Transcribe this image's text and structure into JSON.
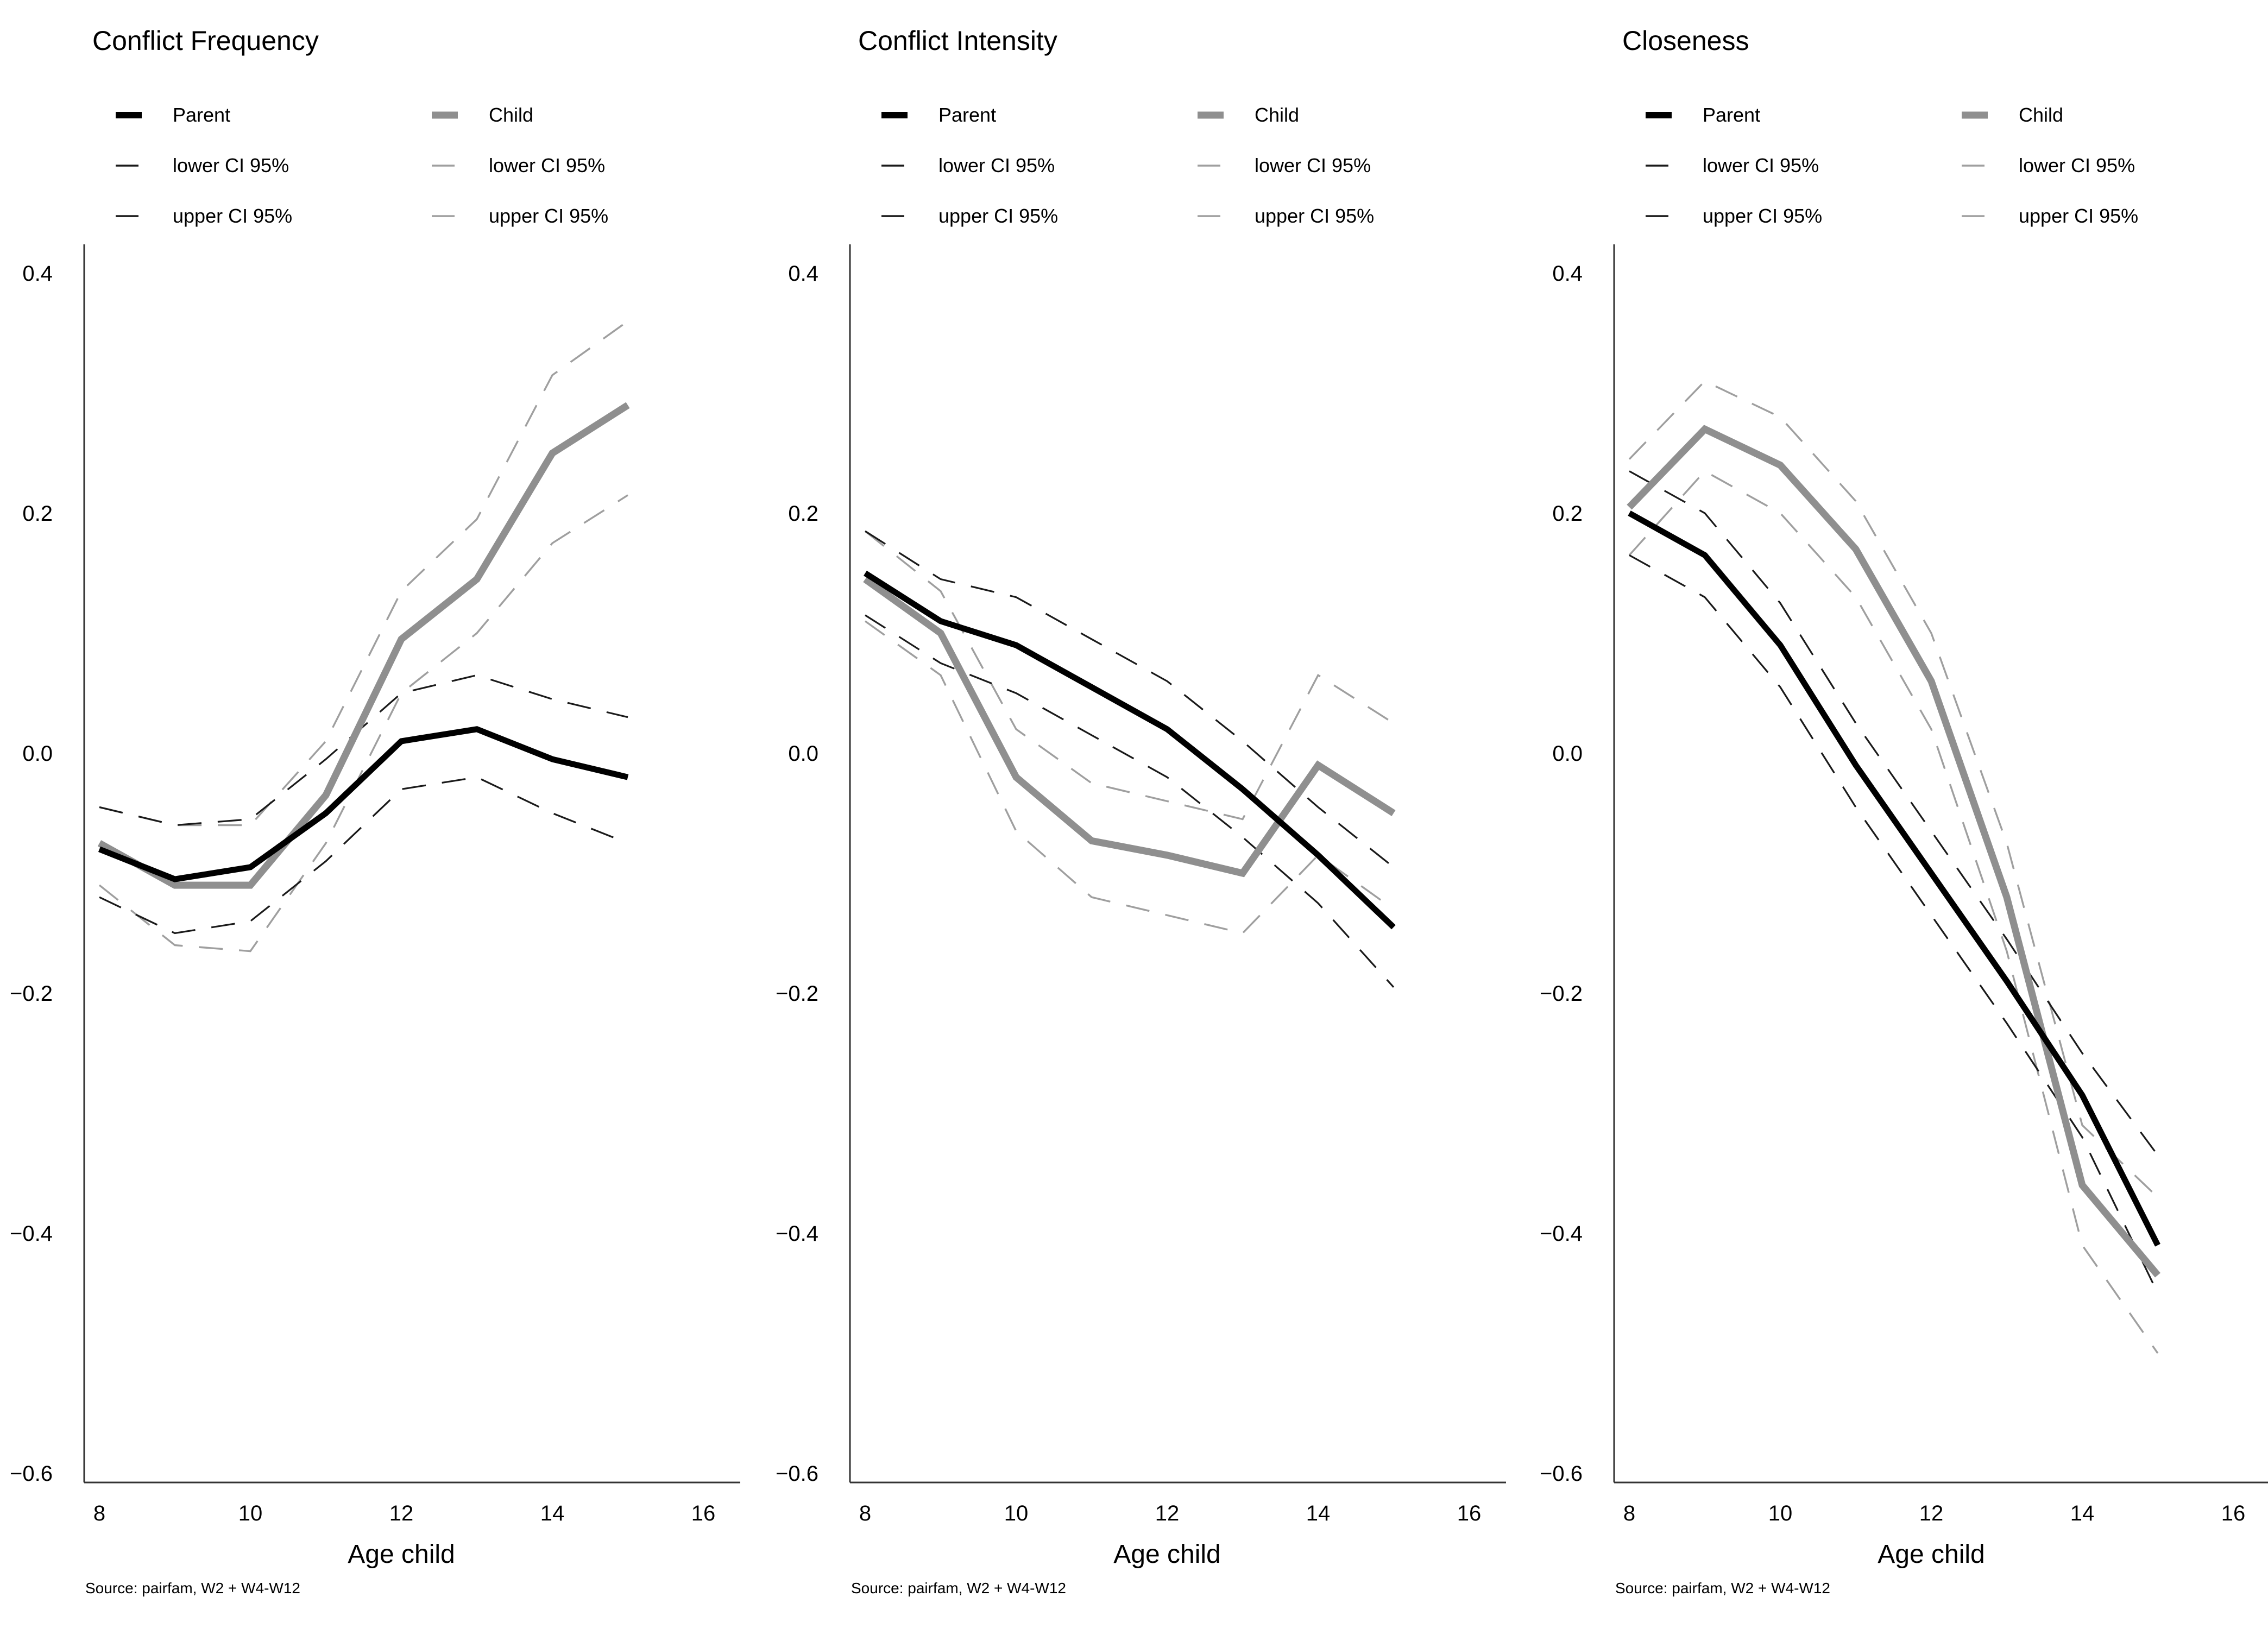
{
  "source": "Source: pairfam, W2 + W4-W12",
  "legend": {
    "parent": "Parent",
    "child": "Child",
    "lower_ci": "lower CI 95%",
    "upper_ci": "upper CI 95%"
  },
  "axis": {
    "xlabel": "Age child",
    "xlim": [
      8,
      16
    ],
    "ylim": [
      -0.6,
      0.4
    ],
    "x_ticks": [
      8,
      10,
      12,
      14,
      16
    ],
    "x_tick_labels": [
      "8",
      "10",
      "12",
      "14",
      "16"
    ],
    "y_ticks": [
      0.4,
      0.2,
      0.0,
      -0.2,
      -0.4,
      -0.6
    ],
    "y_tick_labels": [
      "0.4",
      "0.2",
      "0.0",
      "−0.2",
      "−0.4",
      "−0.6"
    ],
    "grid": false,
    "legend_position": "top-left"
  },
  "colors": {
    "parent": "#000000",
    "child": "#8f8f8f",
    "parent_ci": "#1a1a1a",
    "child_ci": "#9f9f9f",
    "axis": "#333333",
    "background": "#ffffff"
  },
  "chart_data": [
    {
      "type": "line",
      "title": "Conflict Frequency",
      "x": [
        8,
        9,
        10,
        11,
        12,
        13,
        14,
        15
      ],
      "series": [
        {
          "name": "Parent",
          "role": "parent",
          "values": [
            -0.08,
            -0.105,
            -0.095,
            -0.05,
            0.01,
            0.02,
            -0.005,
            -0.02
          ]
        },
        {
          "name": "lower CI 95%",
          "role": "parent_lower",
          "values": [
            -0.12,
            -0.15,
            -0.14,
            -0.09,
            -0.03,
            -0.02,
            -0.05,
            -0.075
          ]
        },
        {
          "name": "upper CI 95%",
          "role": "parent_upper",
          "values": [
            -0.045,
            -0.06,
            -0.055,
            -0.005,
            0.05,
            0.065,
            0.045,
            0.03
          ]
        },
        {
          "name": "Child",
          "role": "child",
          "values": [
            -0.075,
            -0.11,
            -0.11,
            -0.035,
            0.095,
            0.145,
            0.25,
            0.29
          ]
        },
        {
          "name": "lower CI 95%",
          "role": "child_lower",
          "values": [
            -0.11,
            -0.16,
            -0.165,
            -0.075,
            0.05,
            0.1,
            0.175,
            0.215
          ]
        },
        {
          "name": "upper CI 95%",
          "role": "child_upper",
          "values": [
            -0.045,
            -0.06,
            -0.06,
            0.01,
            0.135,
            0.195,
            0.315,
            0.36
          ]
        }
      ]
    },
    {
      "type": "line",
      "title": "Conflict Intensity",
      "x": [
        8,
        9,
        10,
        11,
        12,
        13,
        14,
        15
      ],
      "series": [
        {
          "name": "Parent",
          "role": "parent",
          "values": [
            0.15,
            0.11,
            0.09,
            0.055,
            0.02,
            -0.03,
            -0.085,
            -0.145
          ]
        },
        {
          "name": "lower CI 95%",
          "role": "parent_lower",
          "values": [
            0.115,
            0.075,
            0.05,
            0.015,
            -0.02,
            -0.07,
            -0.125,
            -0.195
          ]
        },
        {
          "name": "upper CI 95%",
          "role": "parent_upper",
          "values": [
            0.185,
            0.145,
            0.13,
            0.095,
            0.06,
            0.01,
            -0.045,
            -0.095
          ]
        },
        {
          "name": "Child",
          "role": "child",
          "values": [
            0.145,
            0.1,
            -0.02,
            -0.073,
            -0.085,
            -0.1,
            -0.01,
            -0.05
          ]
        },
        {
          "name": "lower CI 95%",
          "role": "child_lower",
          "values": [
            0.11,
            0.065,
            -0.065,
            -0.12,
            -0.135,
            -0.15,
            -0.085,
            -0.13
          ]
        },
        {
          "name": "upper CI 95%",
          "role": "child_upper",
          "values": [
            0.185,
            0.135,
            0.02,
            -0.025,
            -0.04,
            -0.055,
            0.065,
            0.025
          ]
        }
      ]
    },
    {
      "type": "line",
      "title": "Closeness",
      "x": [
        8,
        9,
        10,
        11,
        12,
        13,
        14,
        15
      ],
      "series": [
        {
          "name": "Parent",
          "role": "parent",
          "values": [
            0.2,
            0.165,
            0.09,
            -0.01,
            -0.1,
            -0.19,
            -0.285,
            -0.41
          ]
        },
        {
          "name": "lower CI 95%",
          "role": "parent_lower",
          "values": [
            0.165,
            0.13,
            0.055,
            -0.045,
            -0.135,
            -0.225,
            -0.32,
            -0.45
          ]
        },
        {
          "name": "upper CI 95%",
          "role": "parent_upper",
          "values": [
            0.235,
            0.2,
            0.125,
            0.025,
            -0.065,
            -0.155,
            -0.25,
            -0.335
          ]
        },
        {
          "name": "Child",
          "role": "child",
          "values": [
            0.205,
            0.27,
            0.24,
            0.17,
            0.06,
            -0.12,
            -0.36,
            -0.435
          ]
        },
        {
          "name": "lower CI 95%",
          "role": "child_lower",
          "values": [
            0.165,
            0.235,
            0.2,
            0.13,
            0.02,
            -0.165,
            -0.41,
            -0.5
          ]
        },
        {
          "name": "upper CI 95%",
          "role": "child_upper",
          "values": [
            0.245,
            0.31,
            0.28,
            0.21,
            0.1,
            -0.075,
            -0.31,
            -0.37
          ]
        }
      ]
    }
  ]
}
